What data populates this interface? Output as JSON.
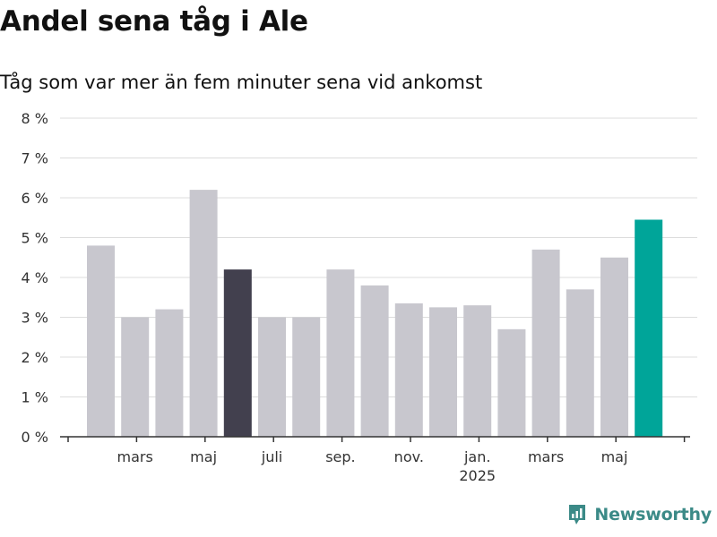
{
  "header": {
    "title": "Andel sena tåg i Ale",
    "subtitle": "Tåg som var mer än fem minuter sena vid ankomst"
  },
  "brand": {
    "name": "Newsworthy",
    "logo_icon": "newsworthy-logo-icon",
    "color": "#3b8a87"
  },
  "colors": {
    "bar": "#c8c7ce",
    "bar_highlight_dark": "#42404e",
    "bar_highlight_last": "#00a599",
    "grid": "#dcdcdc",
    "axis": "#333333"
  },
  "chart_data": {
    "type": "bar",
    "title": "Andel sena tåg i Ale",
    "subtitle": "Tåg som var mer än fem minuter sena vid ankomst",
    "xlabel": "",
    "ylabel": "",
    "ylim": [
      0,
      8
    ],
    "yticks": [
      0,
      1,
      2,
      3,
      4,
      5,
      6,
      7,
      8
    ],
    "ytick_labels": [
      "0 %",
      "1 %",
      "2 %",
      "3 %",
      "4 %",
      "5 %",
      "6 %",
      "7 %",
      "8 %"
    ],
    "grid": true,
    "categories": [
      "2024-02",
      "2024-03",
      "2024-04",
      "2024-05",
      "2024-06",
      "2024-07",
      "2024-08",
      "2024-09",
      "2024-10",
      "2024-11",
      "2024-12",
      "2025-01",
      "2025-02",
      "2025-03",
      "2025-04",
      "2025-05",
      "2025-06"
    ],
    "values": [
      4.8,
      3.0,
      3.2,
      6.2,
      4.2,
      3.0,
      3.0,
      4.2,
      3.8,
      3.35,
      3.25,
      3.3,
      2.7,
      4.7,
      3.7,
      4.5,
      5.45
    ],
    "highlight": {
      "2024-06": "dark",
      "2025-06": "accent"
    },
    "xtick_labels": [
      {
        "category": "2024-03",
        "label": "mars"
      },
      {
        "category": "2024-05",
        "label": "maj"
      },
      {
        "category": "2024-07",
        "label": "juli"
      },
      {
        "category": "2024-09",
        "label": "sep."
      },
      {
        "category": "2024-11",
        "label": "nov."
      },
      {
        "category": "2025-01",
        "label": "jan.",
        "sublabel": "2025"
      },
      {
        "category": "2025-03",
        "label": "mars"
      },
      {
        "category": "2025-05",
        "label": "maj"
      }
    ]
  }
}
